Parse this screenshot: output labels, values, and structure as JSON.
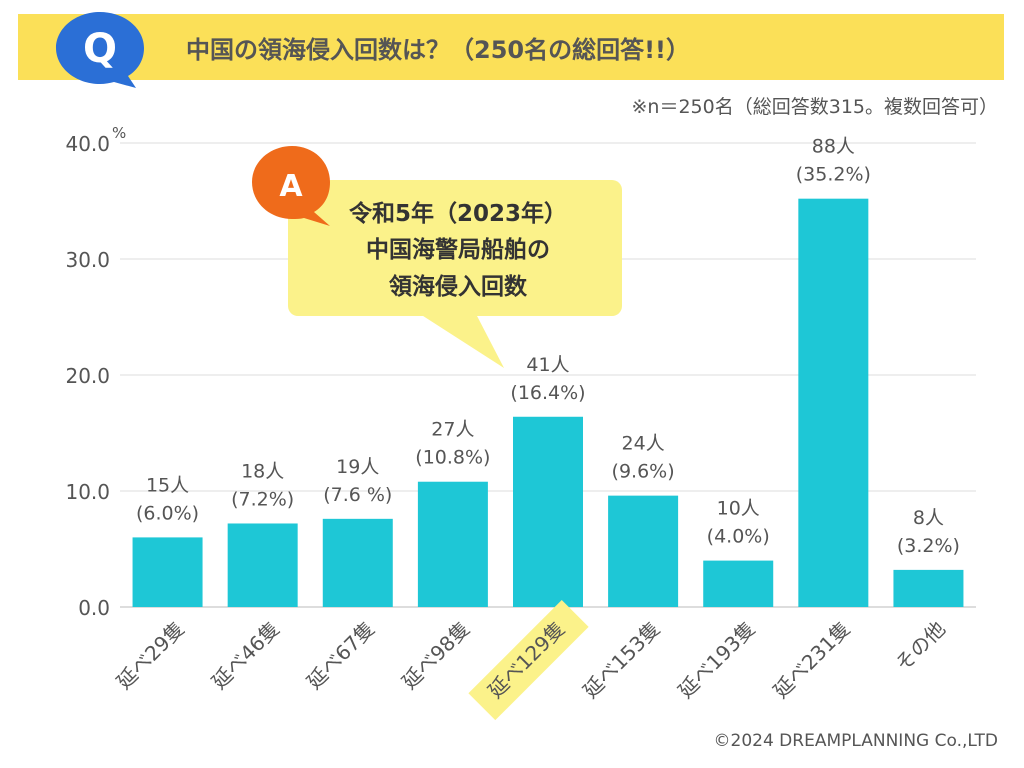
{
  "header": {
    "question_mark": "Q",
    "title": "中国の領海侵入回数は？（250名の総回答!!）"
  },
  "note": "※n＝250名（総回答数315。複数回答可）",
  "answer": {
    "mark": "A",
    "lines": [
      "令和5年（2023年）",
      "中国海警局船舶の",
      "領海侵入回数"
    ]
  },
  "chart_data": {
    "type": "bar",
    "title": "中国の領海侵入回数は？（250名の総回答!!）",
    "unit_label": "%",
    "ylim": [
      0,
      40
    ],
    "yticks": [
      0,
      10,
      20,
      30,
      40
    ],
    "ytick_labels": [
      "0.0",
      "10.0",
      "20.0",
      "30.0",
      "40.0"
    ],
    "grid": true,
    "categories": [
      "延べ29隻",
      "延べ46隻",
      "延べ67隻",
      "延べ98隻",
      "延べ129隻",
      "延べ153隻",
      "延べ193隻",
      "延べ231隻",
      "その他"
    ],
    "values": [
      6.0,
      7.2,
      7.6,
      10.8,
      16.4,
      9.6,
      4.0,
      35.2,
      3.2
    ],
    "counts": [
      "15人",
      "18人",
      "19人",
      "27人",
      "41人",
      "24人",
      "10人",
      "88人",
      "8人"
    ],
    "percent_labels": [
      "(6.0%)",
      "(7.2%)",
      "(7.6 %)",
      "(10.8%)",
      "(16.4%)",
      "(9.6%)",
      "(4.0%)",
      "(35.2%)",
      "(3.2%)"
    ],
    "highlight_index": 4
  },
  "colors": {
    "bar": "#1ec7d6",
    "header_band": "#fbe058",
    "badge": "#ef6b1b",
    "q_badge": "#2b6fd6",
    "callout": "#fbf28a",
    "highlight": "#fbf28a",
    "grid": "#dddddd",
    "text": "#555555"
  },
  "footer": "©2024 DREAMPLANNING Co.,LTD"
}
